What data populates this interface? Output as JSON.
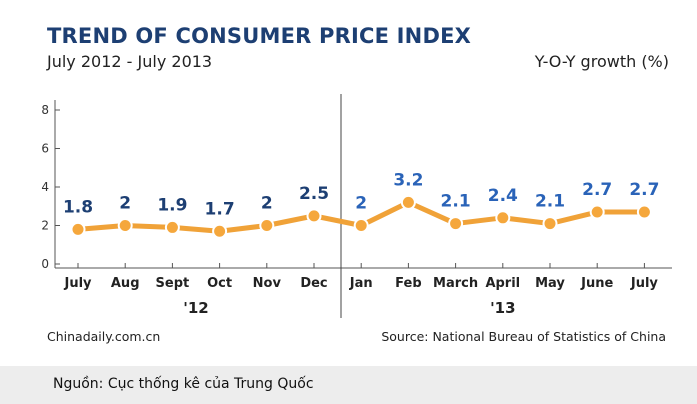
{
  "header": {
    "title": "TREND OF CONSUMER PRICE INDEX",
    "subtitle": "July 2012 - July 2013",
    "unit": "Y-O-Y growth (%)"
  },
  "footer": {
    "left": "Chinadaily.com.cn",
    "right": "Source: National Bureau of Statistics of China"
  },
  "caption": "Nguồn: Cục thống kê của Trung Quốc",
  "colors": {
    "title": "#1d3f73",
    "line": "#f0a238",
    "marker": "#f5a73c",
    "value_label": "#1d3f73",
    "value_label_highlight": "#2a63b8"
  },
  "chart_data": {
    "type": "line",
    "x": [
      "July",
      "Aug",
      "Sept",
      "Oct",
      "Nov",
      "Dec",
      "Jan",
      "Feb",
      "March",
      "April",
      "May",
      "June",
      "July"
    ],
    "series": [
      {
        "values": [
          1.8,
          2,
          1.9,
          1.7,
          2,
          2.5,
          2,
          3.2,
          2.1,
          2.4,
          2.1,
          2.7,
          2.7
        ]
      }
    ],
    "value_labels": [
      "1.8",
      "2",
      "1.9",
      "1.7",
      "2",
      "2.5",
      "2",
      "3.2",
      "2.1",
      "2.4",
      "2.1",
      "2.7",
      "2.7"
    ],
    "year_groups": [
      {
        "label": "'12",
        "months": 6
      },
      {
        "label": "'13",
        "months": 7
      }
    ],
    "yticks": [
      0,
      2,
      4,
      6,
      8
    ],
    "ylim": [
      0,
      8
    ],
    "grid": false
  }
}
